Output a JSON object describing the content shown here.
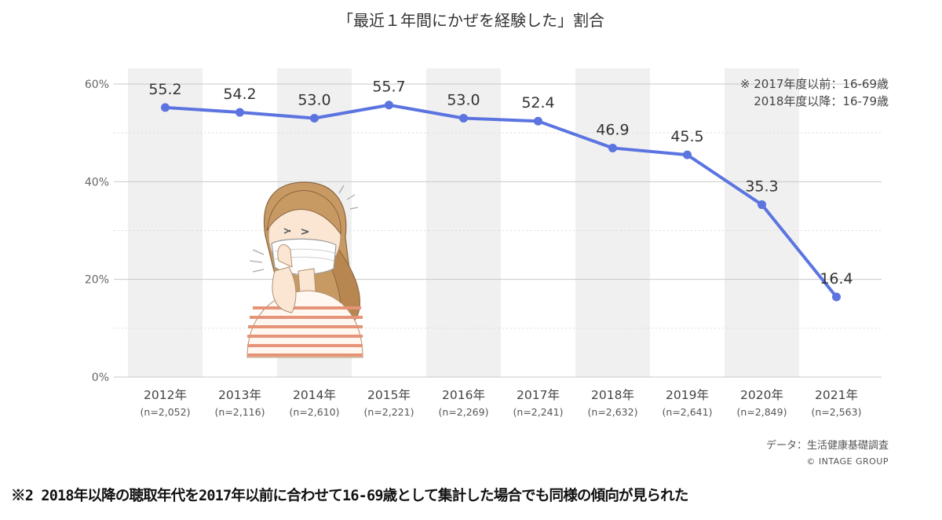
{
  "chart_data": {
    "type": "line",
    "title": "「最近１年間にかぜを経験した」割合",
    "categories": [
      "2012年",
      "2013年",
      "2014年",
      "2015年",
      "2016年",
      "2017年",
      "2018年",
      "2019年",
      "2020年",
      "2021年"
    ],
    "sample_sizes": [
      "(n=2,052)",
      "(n=2,116)",
      "(n=2,610)",
      "(n=2,221)",
      "(n=2,269)",
      "(n=2,241)",
      "(n=2,632)",
      "(n=2,641)",
      "(n=2,849)",
      "(n=2,563)"
    ],
    "values": [
      55.2,
      54.2,
      53.0,
      55.7,
      53.0,
      52.4,
      46.9,
      45.5,
      35.3,
      16.4
    ],
    "value_labels": [
      "55.2",
      "54.2",
      "53.0",
      "55.7",
      "53.0",
      "52.4",
      "46.9",
      "45.5",
      "35.3",
      "16.4"
    ],
    "ylim": [
      0,
      60
    ],
    "yticks": [
      "0%",
      "20%",
      "40%",
      "60%"
    ],
    "ytick_values": [
      0,
      20,
      40,
      60
    ],
    "grid": true,
    "line_color": "#5b74e0",
    "band_color": "#f0f0f0"
  },
  "note": {
    "line1": "※ 2017年度以前：16-69歳",
    "line2": "2018年度以降：16-79歳"
  },
  "source": "データ：生活健康基礎調査",
  "copyright": "© INTAGE GROUP",
  "footnote": "※2 2018年以降の聴取年代を2017年以前に合わせて16-69歳として集計した場合でも同様の傾向が見られた"
}
